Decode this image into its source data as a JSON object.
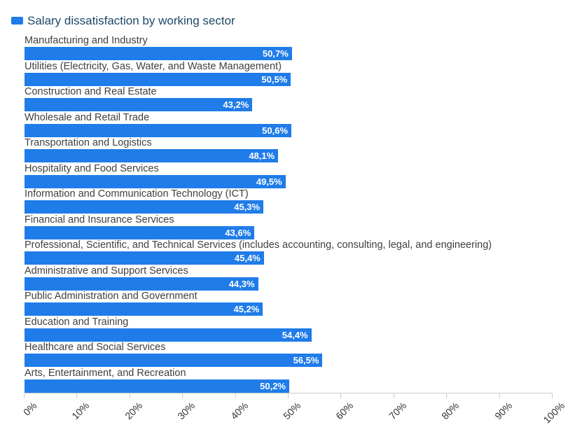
{
  "legend": {
    "label": "Salary dissatisfaction by working sector",
    "swatch_color": "#1f7ce9"
  },
  "chart_data": {
    "type": "bar",
    "orientation": "horizontal",
    "title": "Salary dissatisfaction by working sector",
    "categories": [
      "Manufacturing and Industry",
      "Utilities (Electricity, Gas, Water, and Waste Management)",
      "Construction and Real Estate",
      "Wholesale and Retail Trade",
      "Transportation and Logistics",
      "Hospitality and Food Services",
      "Information and Communication Technology (ICT)",
      "Financial and Insurance Services",
      "Professional, Scientific, and Technical Services (includes accounting, consulting, legal, and engineering)",
      "Administrative and Support Services",
      "Public Administration and Government",
      "Education and Training",
      "Healthcare and Social Services",
      "Arts, Entertainment, and Recreation"
    ],
    "values": [
      50.7,
      50.5,
      43.2,
      50.6,
      48.1,
      49.5,
      45.3,
      43.6,
      45.4,
      44.3,
      45.2,
      54.4,
      56.5,
      50.2
    ],
    "value_labels": [
      "50,7%",
      "50,5%",
      "43,2%",
      "50,6%",
      "48,1%",
      "49,5%",
      "45,3%",
      "43,6%",
      "45,4%",
      "44,3%",
      "45,2%",
      "54,4%",
      "56,5%",
      "50,2%"
    ],
    "x_ticks": [
      "0%",
      "10%",
      "20%",
      "30%",
      "40%",
      "50%",
      "60%",
      "70%",
      "80%",
      "90%",
      "100%"
    ],
    "xlim": [
      0,
      100
    ],
    "xlabel": "",
    "ylabel": "",
    "grid": false,
    "legend_position": "top-left",
    "bar_color": "#1f7ce9",
    "value_label_color": "#ffffff",
    "category_label_color": "#3f3f3f",
    "axis_tick_label_color": "#333333",
    "axis_line_color": "#cccccc",
    "title_color": "#1d4866"
  }
}
